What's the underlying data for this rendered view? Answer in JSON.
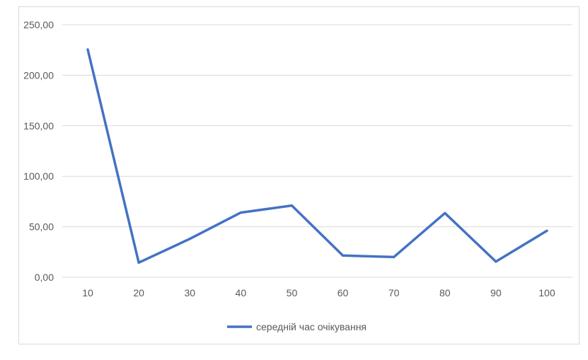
{
  "chart_data": {
    "type": "line",
    "title": "",
    "xlabel": "",
    "ylabel": "",
    "categories": [
      "10",
      "20",
      "30",
      "40",
      "50",
      "60",
      "70",
      "80",
      "90",
      "100"
    ],
    "series": [
      {
        "name": "середній час очікування",
        "values": [
          225.5,
          14.5,
          38.0,
          64.0,
          71.0,
          21.5,
          20.0,
          63.5,
          15.5,
          46.0
        ],
        "color": "#4472c4"
      }
    ],
    "ylim": [
      0,
      250
    ],
    "yticks": [
      "0,00",
      "50,00",
      "100,00",
      "150,00",
      "200,00",
      "250,00"
    ],
    "grid": true,
    "legend": "bottom"
  }
}
